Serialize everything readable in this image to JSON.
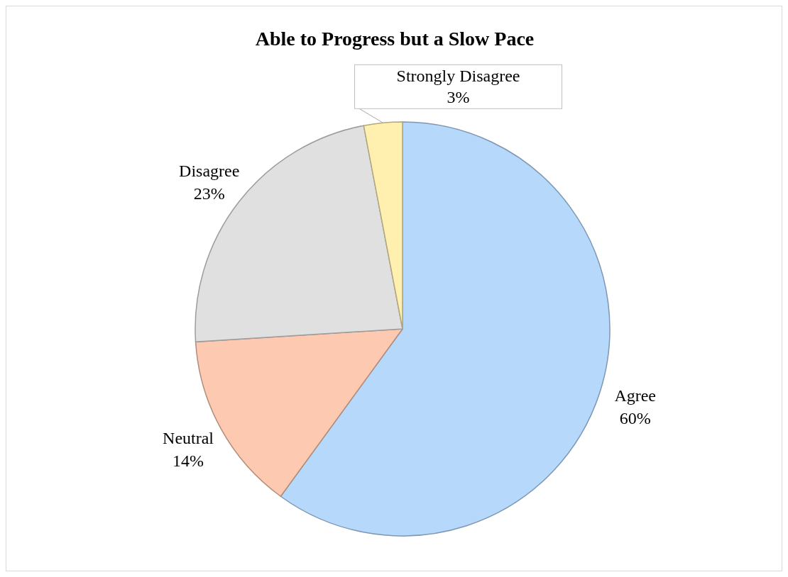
{
  "chart_data": {
    "type": "pie",
    "title": "Able to Progress but a Slow Pace",
    "categories": [
      "Agree",
      "Neutral",
      "Disagree",
      "Strongly Disagree"
    ],
    "values": [
      60,
      14,
      23,
      3
    ],
    "colors": [
      "#b5d8fb",
      "#fdc9b0",
      "#e0e0e0",
      "#fff0b0"
    ],
    "value_labels": [
      "60%",
      "14%",
      "23%",
      "3%"
    ],
    "legend": false
  }
}
